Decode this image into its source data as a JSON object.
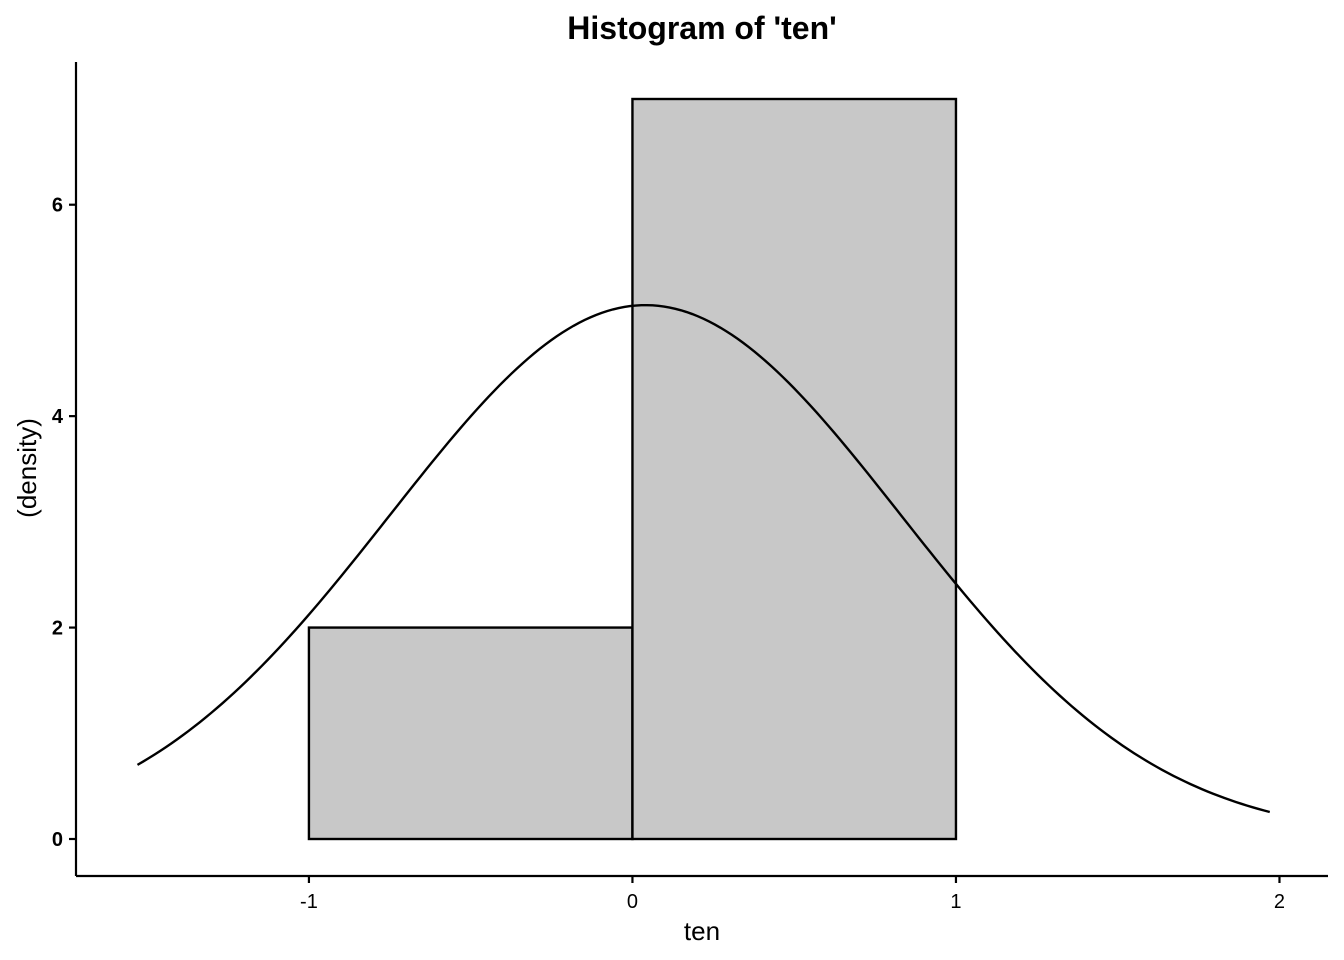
{
  "chart_data": {
    "type": "bar",
    "title": "Histogram of 'ten'",
    "xlabel": "ten",
    "ylabel": "(density)",
    "bins": [
      {
        "start": -1,
        "end": 0,
        "density": 2
      },
      {
        "start": 0,
        "end": 1,
        "density": 7
      }
    ],
    "bar_fill": "#c8c8c8",
    "density_curve": {
      "type": "normal",
      "mean": 0.04,
      "sd": 0.79,
      "x_range": [
        -1.53,
        1.97
      ]
    },
    "x_ticks": [
      -1,
      0,
      1,
      2
    ],
    "y_ticks": [
      0,
      2,
      4,
      6
    ],
    "xlim": [
      -1.72,
      2.15
    ],
    "ylim": [
      -0.35,
      7.35
    ],
    "grid": false,
    "legend": "none"
  }
}
